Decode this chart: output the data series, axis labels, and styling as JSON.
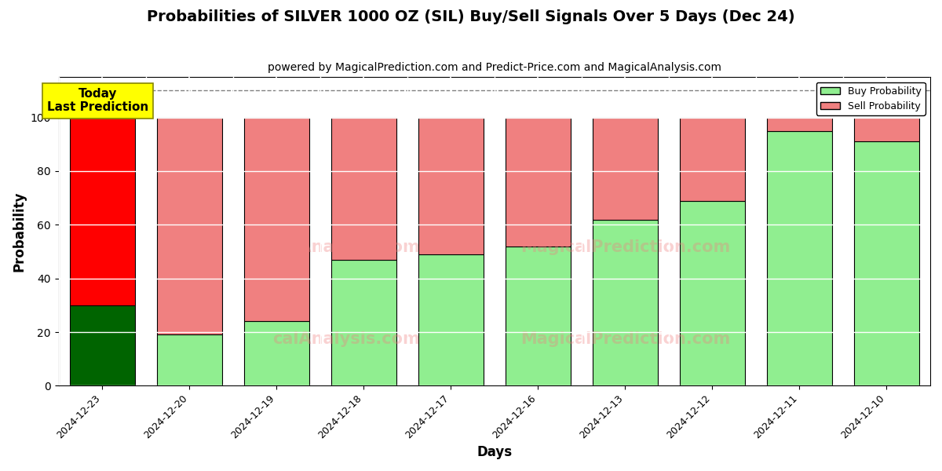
{
  "title": "Probabilities of SILVER 1000 OZ (SIL) Buy/Sell Signals Over 5 Days (Dec 24)",
  "subtitle": "powered by MagicalPrediction.com and Predict-Price.com and MagicalAnalysis.com",
  "xlabel": "Days",
  "ylabel": "Probability",
  "dates": [
    "2024-12-23",
    "2024-12-20",
    "2024-12-19",
    "2024-12-18",
    "2024-12-17",
    "2024-12-16",
    "2024-12-13",
    "2024-12-12",
    "2024-12-11",
    "2024-12-10"
  ],
  "buy_values": [
    30,
    19,
    24,
    47,
    49,
    52,
    62,
    69,
    95,
    91
  ],
  "sell_values": [
    70,
    81,
    76,
    53,
    51,
    48,
    38,
    31,
    5,
    9
  ],
  "today_bar_buy_color": "#006400",
  "today_bar_sell_color": "#FF0000",
  "regular_buy_color": "#90EE90",
  "regular_sell_color": "#F08080",
  "today_label_bg": "#FFFF00",
  "today_label_text": "Today\nLast Prediction",
  "dashed_line_y": 110,
  "ylim": [
    0,
    115
  ],
  "yticks": [
    0,
    20,
    40,
    60,
    80,
    100
  ],
  "legend_buy": "Buy Probability",
  "legend_sell": "Sell Probability",
  "bar_width": 0.75,
  "facecolor": "#ffffff",
  "grid_color": "white",
  "figsize": [
    12,
    6
  ],
  "dpi": 100
}
